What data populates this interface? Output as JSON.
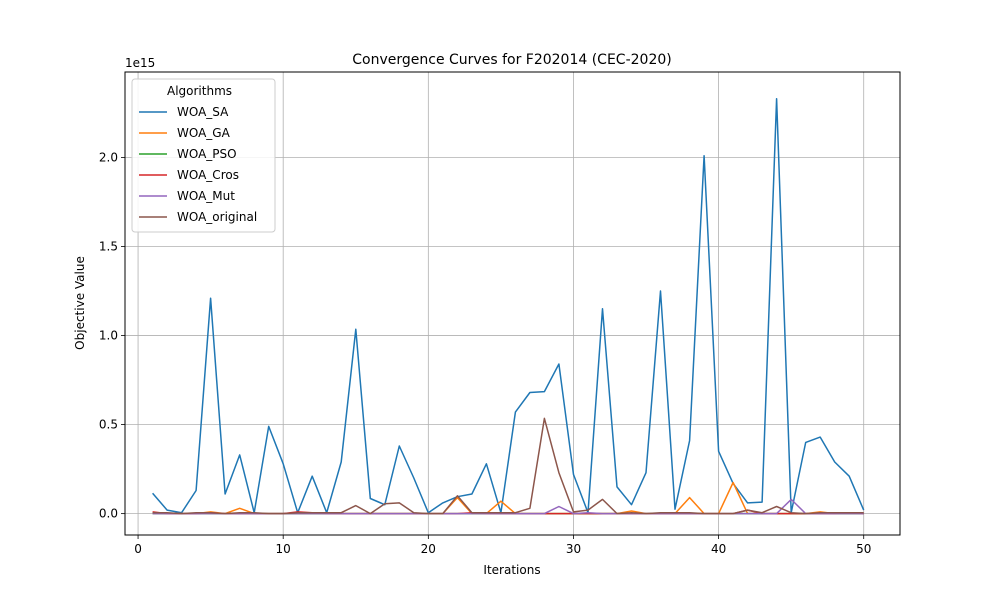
{
  "chart_data": {
    "type": "line",
    "title": "Convergence Curves for F202014 (CEC-2020)",
    "xlabel": "Iterations",
    "ylabel": "Objective Value",
    "y_offset_label": "1e15",
    "y_scale": 1000000000000000.0,
    "xlim": [
      -0.9,
      52.5
    ],
    "ylim": [
      -0.12,
      2.48
    ],
    "x_ticks": [
      0,
      10,
      20,
      30,
      40,
      50
    ],
    "y_ticks": [
      0.0,
      0.5,
      1.0,
      1.5,
      2.0
    ],
    "y_tick_labels": [
      "0.0",
      "0.5",
      "1.0",
      "1.5",
      "2.0"
    ],
    "grid": true,
    "legend": {
      "title": "Algorithms",
      "position": "upper-left"
    },
    "x": [
      1,
      2,
      3,
      4,
      5,
      6,
      7,
      8,
      9,
      10,
      11,
      12,
      13,
      14,
      15,
      16,
      17,
      18,
      19,
      20,
      21,
      22,
      23,
      24,
      25,
      26,
      27,
      28,
      29,
      30,
      31,
      32,
      33,
      34,
      35,
      36,
      37,
      38,
      39,
      40,
      41,
      42,
      43,
      44,
      45,
      46,
      47,
      48,
      49,
      50
    ],
    "series": [
      {
        "name": "WOA_SA",
        "color": "#1f77b4",
        "values": [
          0.115,
          0.02,
          0.005,
          0.13,
          1.21,
          0.11,
          0.33,
          0.005,
          0.49,
          0.28,
          0.005,
          0.21,
          0.005,
          0.29,
          1.035,
          0.085,
          0.05,
          0.38,
          0.2,
          0.005,
          0.06,
          0.095,
          0.11,
          0.28,
          0.005,
          0.57,
          0.68,
          0.685,
          0.84,
          0.22,
          0.005,
          1.15,
          0.15,
          0.05,
          0.23,
          1.25,
          0.025,
          0.41,
          2.01,
          0.35,
          0.17,
          0.06,
          0.065,
          2.33,
          0.005,
          0.4,
          0.43,
          0.29,
          0.21,
          0.02
        ]
      },
      {
        "name": "WOA_GA",
        "color": "#ff7f0e",
        "values": [
          0.005,
          0.0,
          0.0,
          0.0,
          0.01,
          0.0,
          0.03,
          0.0,
          0.0,
          0.0,
          0.0,
          0.0,
          0.0,
          0.0,
          0.0,
          0.0,
          0.0,
          0.0,
          0.0,
          0.0,
          0.0,
          0.09,
          0.0,
          0.0,
          0.07,
          0.0,
          0.0,
          0.0,
          0.0,
          0.0,
          0.0,
          0.0,
          0.0,
          0.015,
          0.0,
          0.0,
          0.0,
          0.09,
          0.0,
          0.0,
          0.175,
          0.0,
          0.0,
          0.0,
          0.0,
          0.0,
          0.01,
          0.0,
          0.0,
          0.0
        ]
      },
      {
        "name": "WOA_PSO",
        "color": "#2ca02c",
        "values": [
          0.0,
          0.0,
          0.0,
          0.0,
          0.0,
          0.0,
          0.0,
          0.0,
          0.0,
          0.0,
          0.0,
          0.0,
          0.0,
          0.0,
          0.0,
          0.0,
          0.0,
          0.0,
          0.0,
          0.0,
          0.0,
          0.0,
          0.0,
          0.0,
          0.0,
          0.0,
          0.0,
          0.0,
          0.0,
          0.0,
          0.0,
          0.0,
          0.0,
          0.0,
          0.0,
          0.0,
          0.0,
          0.0,
          0.0,
          0.0,
          0.0,
          0.0,
          0.0,
          0.0,
          0.0,
          0.0,
          0.0,
          0.0,
          0.0,
          0.0
        ]
      },
      {
        "name": "WOA_Cros",
        "color": "#d62728",
        "values": [
          0.01,
          0.0,
          0.0,
          0.0,
          0.005,
          0.0,
          0.0,
          0.0,
          0.0,
          0.0,
          0.01,
          0.005,
          0.0,
          0.0,
          0.0,
          0.0,
          0.0,
          0.0,
          0.0,
          0.0,
          0.0,
          0.0,
          0.005,
          0.0,
          0.0,
          0.0,
          0.0,
          0.0,
          0.0,
          0.0,
          0.0,
          0.0,
          0.0,
          0.0,
          0.0,
          0.0,
          0.0,
          0.0,
          0.0,
          0.0,
          0.0,
          0.02,
          0.0,
          0.0,
          0.0,
          0.0,
          0.0,
          0.0,
          0.005,
          0.0
        ]
      },
      {
        "name": "WOA_Mut",
        "color": "#9467bd",
        "values": [
          0.0,
          0.0,
          0.0,
          0.0,
          0.0,
          0.0,
          0.0,
          0.0,
          0.0,
          0.0,
          0.0,
          0.0,
          0.0,
          0.0,
          0.0,
          0.0,
          0.0,
          0.0,
          0.0,
          0.0,
          0.0,
          0.0,
          0.0,
          0.0,
          0.0,
          0.0,
          0.0,
          0.0,
          0.04,
          0.0,
          0.005,
          0.0,
          0.0,
          0.0,
          0.0,
          0.0,
          0.0,
          0.0,
          0.0,
          0.0,
          0.0,
          0.0,
          0.0,
          0.0,
          0.08,
          0.0,
          0.0,
          0.0,
          0.0,
          0.0
        ]
      },
      {
        "name": "WOA_original",
        "color": "#8c564b",
        "values": [
          0.005,
          0.005,
          0.0,
          0.005,
          0.005,
          0.0,
          0.005,
          0.005,
          0.0,
          0.0,
          0.005,
          0.005,
          0.005,
          0.005,
          0.045,
          0.0,
          0.055,
          0.06,
          0.005,
          0.0,
          0.0,
          0.1,
          0.005,
          0.005,
          0.005,
          0.005,
          0.03,
          0.535,
          0.23,
          0.01,
          0.02,
          0.08,
          0.0,
          0.005,
          0.0,
          0.005,
          0.005,
          0.005,
          0.0,
          0.0,
          0.0,
          0.02,
          0.005,
          0.04,
          0.005,
          0.0,
          0.005,
          0.005,
          0.005,
          0.005
        ]
      }
    ]
  }
}
